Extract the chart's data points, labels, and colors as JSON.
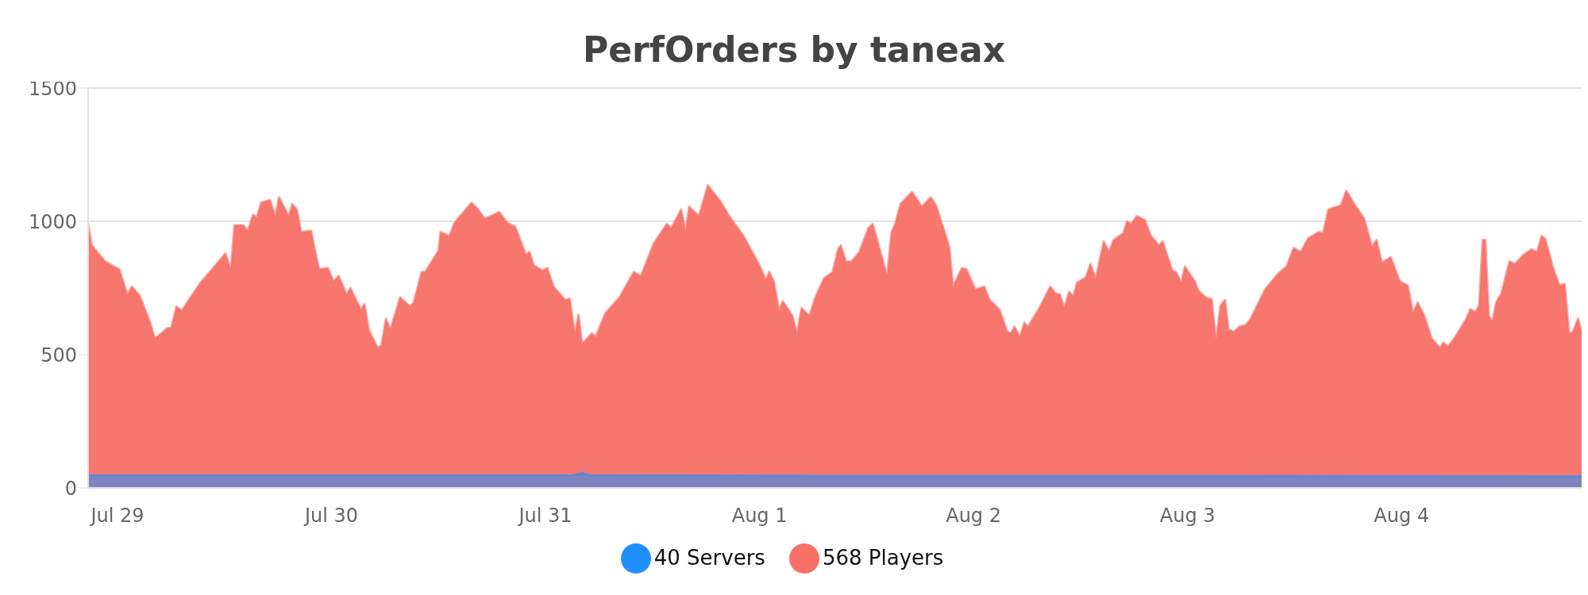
{
  "chart_data": {
    "type": "area",
    "title": "PerfOrders by taneax",
    "xlim": [
      "--07-28T20:42",
      "--08-04T20:12"
    ],
    "xticks": [
      {
        "value": "--07-29",
        "label": "Jul 29"
      },
      {
        "value": "--07-30",
        "label": "Jul 30"
      },
      {
        "value": "--07-31",
        "label": "Jul 31"
      },
      {
        "value": "--08-01",
        "label": "Aug 1"
      },
      {
        "value": "--08-02",
        "label": "Aug 2"
      },
      {
        "value": "--08-03",
        "label": "Aug 3"
      },
      {
        "value": "--08-04",
        "label": "Aug 4"
      }
    ],
    "ylim": [
      0,
      1500
    ],
    "yticks": [
      0,
      500,
      1000,
      1500
    ],
    "grid": "y",
    "legend": "bottom",
    "series": [
      {
        "name": "568 Players",
        "color": "#f77067",
        "x": [
          "--07-28T20:42",
          "--07-28T21:06",
          "--07-28T22:36",
          "--07-29T00:12",
          "--07-29T01:06",
          "--07-29T01:36",
          "--07-29T02:30",
          "--07-29T03:36",
          "--07-29T04:12",
          "--07-29T05:36",
          "--07-29T06:00",
          "--07-29T06:36",
          "--07-29T07:12",
          "--07-29T09:18",
          "--07-29T10:36",
          "--07-29T12:06",
          "--07-29T12:42",
          "--07-29T13:06",
          "--07-29T14:06",
          "--07-29T14:36",
          "--07-29T15:12",
          "--07-29T15:36",
          "--07-29T16:06",
          "--07-29T17:06",
          "--07-29T17:42",
          "--07-29T18:06",
          "--07-29T19:12",
          "--07-29T19:36",
          "--07-29T20:06",
          "--07-29T20:36",
          "--07-29T21:42",
          "--07-29T22:36",
          "--07-29T23:36",
          "--07-30T00:12",
          "--07-30T00:48",
          "--07-30T01:42",
          "--07-30T02:06",
          "--07-30T03:18",
          "--07-30T03:42",
          "--07-30T04:12",
          "--07-30T05:12",
          "--07-30T05:36",
          "--07-30T06:06",
          "--07-30T06:36",
          "--07-30T07:42",
          "--07-30T08:48",
          "--07-30T09:12",
          "--07-30T10:06",
          "--07-30T10:30",
          "--07-30T12:00",
          "--07-30T12:12",
          "--07-30T13:12",
          "--07-30T13:48",
          "--07-30T15:42",
          "--07-30T16:18",
          "--07-30T17:12",
          "--07-30T18:48",
          "--07-30T19:42",
          "--07-30T20:36",
          "--07-30T21:48",
          "--07-30T22:12",
          "--07-30T22:42",
          "--07-30T23:42",
          "--07-31T00:12",
          "--07-31T00:54",
          "--07-31T02:12",
          "--07-31T02:42",
          "--07-31T03:18",
          "--07-31T03:42",
          "--07-31T04:06",
          "--07-31T05:12",
          "--07-31T05:36",
          "--07-31T06:42",
          "--07-31T08:18",
          "--07-31T09:54",
          "--07-31T10:42",
          "--07-31T12:06",
          "--07-31T13:36",
          "--07-31T14:06",
          "--07-31T15:12",
          "--07-31T15:42",
          "--07-31T16:06",
          "--07-31T17:12",
          "--07-31T18:12",
          "--07-31T19:30",
          "--07-31T20:42",
          "--07-31T22:12",
          "--08-01T00:00",
          "--08-01T00:42",
          "--08-01T01:06",
          "--08-01T01:36",
          "--08-01T02:12",
          "--08-01T02:36",
          "--08-01T03:42",
          "--08-01T04:12",
          "--08-01T04:42",
          "--08-01T05:36",
          "--08-01T06:12",
          "--08-01T07:12",
          "--08-01T08:12",
          "--08-01T08:48",
          "--08-01T09:06",
          "--08-01T09:42",
          "--08-01T10:18",
          "--08-01T11:12",
          "--08-01T12:12",
          "--08-01T12:42",
          "--08-01T13:24",
          "--08-01T14:18",
          "--08-01T14:48",
          "--08-01T15:12",
          "--08-01T15:48",
          "--08-01T17:06",
          "--08-01T17:42",
          "--08-01T18:12",
          "--08-01T19:12",
          "--08-01T19:48",
          "--08-01T21:00",
          "--08-01T21:18",
          "--08-01T21:42",
          "--08-01T22:42",
          "--08-01T23:12",
          "--08-02T00:12",
          "--08-02T01:12",
          "--08-02T01:48",
          "--08-02T02:54",
          "--08-02T03:48",
          "--08-02T04:12",
          "--08-02T04:36",
          "--08-02T05:12",
          "--08-02T05:42",
          "--08-02T06:06",
          "--08-02T07:18",
          "--08-02T08:36",
          "--08-02T09:12",
          "--08-02T09:42",
          "--08-02T10:12",
          "--08-02T10:42",
          "--08-02T11:12",
          "--08-02T11:36",
          "--08-02T12:36",
          "--08-02T13:06",
          "--08-02T13:42",
          "--08-02T14:36",
          "--08-02T15:12",
          "--08-02T15:42",
          "--08-02T16:48",
          "--08-02T17:12",
          "--08-02T17:42",
          "--08-02T18:18",
          "--08-02T19:12",
          "--08-02T19:54",
          "--08-02T20:48",
          "--08-02T21:12",
          "--08-02T22:18",
          "--08-02T22:42",
          "--08-02T23:18",
          "--08-02T23:42",
          "--08-03T00:48",
          "--08-03T01:12",
          "--08-03T02:12",
          "--08-03T02:42",
          "--08-03T03:12",
          "--08-03T03:42",
          "--08-03T04:12",
          "--08-03T04:36",
          "--08-03T05:12",
          "--08-03T05:48",
          "--08-03T06:30",
          "--08-03T07:00",
          "--08-03T08:42",
          "--08-03T10:12",
          "--08-03T11:06",
          "--08-03T11:54",
          "--08-03T12:42",
          "--08-03T13:30",
          "--08-03T14:42",
          "--08-03T15:12",
          "--08-03T15:48",
          "--08-03T17:12",
          "--08-03T17:48",
          "--08-03T18:42",
          "--08-03T19:48",
          "--08-03T20:42",
          "--08-03T21:12",
          "--08-03T21:48",
          "--08-03T22:48",
          "--08-03T23:48",
          "--08-04T00:42",
          "--08-04T01:18",
          "--08-04T01:48",
          "--08-04T02:30",
          "--08-04T03:24",
          "--08-04T04:18",
          "--08-04T04:42",
          "--08-04T05:12",
          "--08-04T05:54",
          "--08-04T07:12",
          "--08-04T07:42",
          "--08-04T08:18",
          "--08-04T08:42",
          "--08-04T09:06",
          "--08-04T09:24",
          "--08-04T09:48",
          "--08-04T10:12",
          "--08-04T10:36",
          "--08-04T11:12",
          "--08-04T12:06",
          "--08-04T12:42",
          "--08-04T13:42",
          "--08-04T14:36",
          "--08-04T15:12",
          "--08-04T15:42",
          "--08-04T16:06",
          "--08-04T17:00",
          "--08-04T17:42",
          "--08-04T18:18",
          "--08-04T18:48",
          "--08-04T19:12",
          "--08-04T19:48",
          "--08-04T20:12"
        ],
        "values": [
          990,
          910,
          850,
          820,
          725,
          755,
          720,
          625,
          560,
          600,
          600,
          680,
          665,
          770,
          820,
          880,
          820,
          985,
          985,
          965,
          1025,
          1015,
          1070,
          1080,
          1020,
          1090,
          1020,
          1065,
          1045,
          960,
          965,
          820,
          825,
          775,
          795,
          725,
          750,
          670,
          690,
          590,
          525,
          535,
          635,
          595,
          715,
          680,
          695,
          810,
          810,
          890,
          960,
          945,
          995,
          1070,
          1050,
          1010,
          1035,
          995,
          980,
          875,
          885,
          835,
          815,
          825,
          755,
          705,
          710,
          580,
          650,
          540,
          580,
          565,
          655,
          715,
          810,
          795,
          915,
          990,
          975,
          1045,
          965,
          1055,
          1020,
          1135,
          1080,
          1015,
          945,
          835,
          780,
          810,
          775,
          665,
          700,
          645,
          580,
          675,
          645,
          710,
          785,
          810,
          895,
          910,
          850,
          850,
          885,
          975,
          990,
          905,
          795,
          960,
          990,
          1065,
          1110,
          1080,
          1055,
          1090,
          1060,
          935,
          900,
          755,
          825,
          820,
          745,
          755,
          705,
          670,
          585,
          580,
          605,
          565,
          620,
          605,
          670,
          755,
          730,
          725,
          675,
          735,
          720,
          770,
          790,
          840,
          785,
          925,
          885,
          930,
          955,
          1000,
          990,
          1020,
          1005,
          945,
          910,
          925,
          815,
          810,
          770,
          830,
          775,
          740,
          710,
          710,
          555,
          685,
          705,
          595,
          585,
          605,
          610,
          630,
          745,
          805,
          830,
          900,
          885,
          935,
          960,
          955,
          1045,
          1060,
          1115,
          1065,
          1010,
          905,
          930,
          845,
          865,
          775,
          760,
          655,
          695,
          650,
          560,
          525,
          545,
          530,
          560,
          630,
          670,
          660,
          685,
          930,
          930,
          645,
          625,
          695,
          730,
          850,
          840,
          875,
          895,
          885,
          945,
          935,
          825,
          760,
          765,
          580,
          585,
          635,
          585
        ]
      },
      {
        "name": "40 Servers",
        "color": "#1e90ff",
        "x": [
          "--07-28T20:42",
          "--07-29T20:00",
          "--07-30T16:00",
          "--07-31T03:00",
          "--07-31T04:06",
          "--07-31T05:00",
          "--08-01T08:00",
          "--08-03T00:00",
          "--08-03T20:00",
          "--08-04T20:12"
        ],
        "values": [
          47,
          47,
          47,
          47,
          55,
          47,
          45,
          45,
          44,
          43
        ]
      }
    ]
  }
}
